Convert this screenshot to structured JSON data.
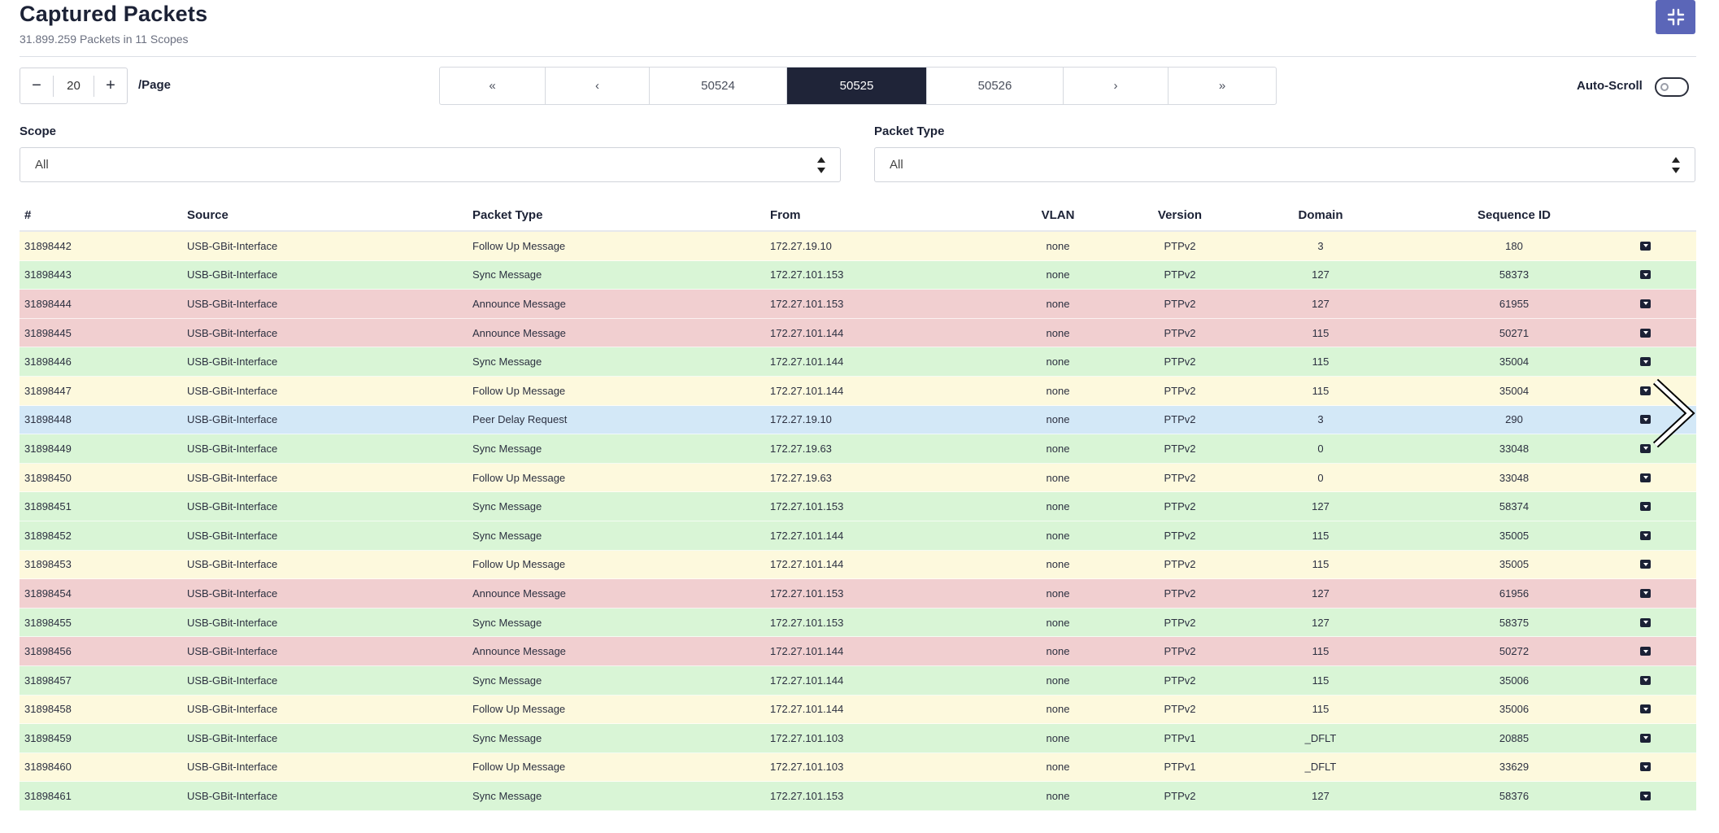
{
  "header": {
    "title": "Captured Packets",
    "subtitle": "31.899.259 Packets in 11 Scopes",
    "collapse_icon": "compress-icon"
  },
  "per_page": {
    "minus": "−",
    "value": "20",
    "plus": "+",
    "label": "/Page"
  },
  "pagination": {
    "items": [
      {
        "label": "«",
        "active": false
      },
      {
        "label": "‹",
        "active": false
      },
      {
        "label": "50524",
        "active": false
      },
      {
        "label": "50525",
        "active": true
      },
      {
        "label": "50526",
        "active": false
      },
      {
        "label": "›",
        "active": false
      },
      {
        "label": "»",
        "active": false
      }
    ]
  },
  "auto_scroll": {
    "label": "Auto-Scroll",
    "enabled": false
  },
  "filters": {
    "scope": {
      "label": "Scope",
      "value": "All"
    },
    "packet_type": {
      "label": "Packet Type",
      "value": "All"
    }
  },
  "colors": {
    "follow_up": "#fdf9dd",
    "sync": "#d9f5d6",
    "announce": "#f1cfd0",
    "peer_delay": "#d3e8f7",
    "active_page": "#1f2438",
    "accent_button": "#5b66b8"
  },
  "table": {
    "columns": [
      "#",
      "Source",
      "Packet Type",
      "From",
      "VLAN",
      "Version",
      "Domain",
      "Sequence ID"
    ],
    "rows": [
      {
        "num": "31898442",
        "source": "USB-GBit-Interface",
        "type": "Follow Up Message",
        "from": "172.27.19.10",
        "vlan": "none",
        "version": "PTPv2",
        "domain": "3",
        "seq": "180",
        "kind": "follow_up"
      },
      {
        "num": "31898443",
        "source": "USB-GBit-Interface",
        "type": "Sync Message",
        "from": "172.27.101.153",
        "vlan": "none",
        "version": "PTPv2",
        "domain": "127",
        "seq": "58373",
        "kind": "sync"
      },
      {
        "num": "31898444",
        "source": "USB-GBit-Interface",
        "type": "Announce Message",
        "from": "172.27.101.153",
        "vlan": "none",
        "version": "PTPv2",
        "domain": "127",
        "seq": "61955",
        "kind": "announce"
      },
      {
        "num": "31898445",
        "source": "USB-GBit-Interface",
        "type": "Announce Message",
        "from": "172.27.101.144",
        "vlan": "none",
        "version": "PTPv2",
        "domain": "115",
        "seq": "50271",
        "kind": "announce"
      },
      {
        "num": "31898446",
        "source": "USB-GBit-Interface",
        "type": "Sync Message",
        "from": "172.27.101.144",
        "vlan": "none",
        "version": "PTPv2",
        "domain": "115",
        "seq": "35004",
        "kind": "sync"
      },
      {
        "num": "31898447",
        "source": "USB-GBit-Interface",
        "type": "Follow Up Message",
        "from": "172.27.101.144",
        "vlan": "none",
        "version": "PTPv2",
        "domain": "115",
        "seq": "35004",
        "kind": "follow_up"
      },
      {
        "num": "31898448",
        "source": "USB-GBit-Interface",
        "type": "Peer Delay Request",
        "from": "172.27.19.10",
        "vlan": "none",
        "version": "PTPv2",
        "domain": "3",
        "seq": "290",
        "kind": "peer_delay"
      },
      {
        "num": "31898449",
        "source": "USB-GBit-Interface",
        "type": "Sync Message",
        "from": "172.27.19.63",
        "vlan": "none",
        "version": "PTPv2",
        "domain": "0",
        "seq": "33048",
        "kind": "sync"
      },
      {
        "num": "31898450",
        "source": "USB-GBit-Interface",
        "type": "Follow Up Message",
        "from": "172.27.19.63",
        "vlan": "none",
        "version": "PTPv2",
        "domain": "0",
        "seq": "33048",
        "kind": "follow_up"
      },
      {
        "num": "31898451",
        "source": "USB-GBit-Interface",
        "type": "Sync Message",
        "from": "172.27.101.153",
        "vlan": "none",
        "version": "PTPv2",
        "domain": "127",
        "seq": "58374",
        "kind": "sync"
      },
      {
        "num": "31898452",
        "source": "USB-GBit-Interface",
        "type": "Sync Message",
        "from": "172.27.101.144",
        "vlan": "none",
        "version": "PTPv2",
        "domain": "115",
        "seq": "35005",
        "kind": "sync"
      },
      {
        "num": "31898453",
        "source": "USB-GBit-Interface",
        "type": "Follow Up Message",
        "from": "172.27.101.144",
        "vlan": "none",
        "version": "PTPv2",
        "domain": "115",
        "seq": "35005",
        "kind": "follow_up"
      },
      {
        "num": "31898454",
        "source": "USB-GBit-Interface",
        "type": "Announce Message",
        "from": "172.27.101.153",
        "vlan": "none",
        "version": "PTPv2",
        "domain": "127",
        "seq": "61956",
        "kind": "announce"
      },
      {
        "num": "31898455",
        "source": "USB-GBit-Interface",
        "type": "Sync Message",
        "from": "172.27.101.153",
        "vlan": "none",
        "version": "PTPv2",
        "domain": "127",
        "seq": "58375",
        "kind": "sync"
      },
      {
        "num": "31898456",
        "source": "USB-GBit-Interface",
        "type": "Announce Message",
        "from": "172.27.101.144",
        "vlan": "none",
        "version": "PTPv2",
        "domain": "115",
        "seq": "50272",
        "kind": "announce"
      },
      {
        "num": "31898457",
        "source": "USB-GBit-Interface",
        "type": "Sync Message",
        "from": "172.27.101.144",
        "vlan": "none",
        "version": "PTPv2",
        "domain": "115",
        "seq": "35006",
        "kind": "sync"
      },
      {
        "num": "31898458",
        "source": "USB-GBit-Interface",
        "type": "Follow Up Message",
        "from": "172.27.101.144",
        "vlan": "none",
        "version": "PTPv2",
        "domain": "115",
        "seq": "35006",
        "kind": "follow_up"
      },
      {
        "num": "31898459",
        "source": "USB-GBit-Interface",
        "type": "Sync Message",
        "from": "172.27.101.103",
        "vlan": "none",
        "version": "PTPv1",
        "domain": "_DFLT",
        "seq": "20885",
        "kind": "sync"
      },
      {
        "num": "31898460",
        "source": "USB-GBit-Interface",
        "type": "Follow Up Message",
        "from": "172.27.101.103",
        "vlan": "none",
        "version": "PTPv1",
        "domain": "_DFLT",
        "seq": "33629",
        "kind": "follow_up"
      },
      {
        "num": "31898461",
        "source": "USB-GBit-Interface",
        "type": "Sync Message",
        "from": "172.27.101.153",
        "vlan": "none",
        "version": "PTPv2",
        "domain": "127",
        "seq": "58376",
        "kind": "sync"
      }
    ]
  }
}
